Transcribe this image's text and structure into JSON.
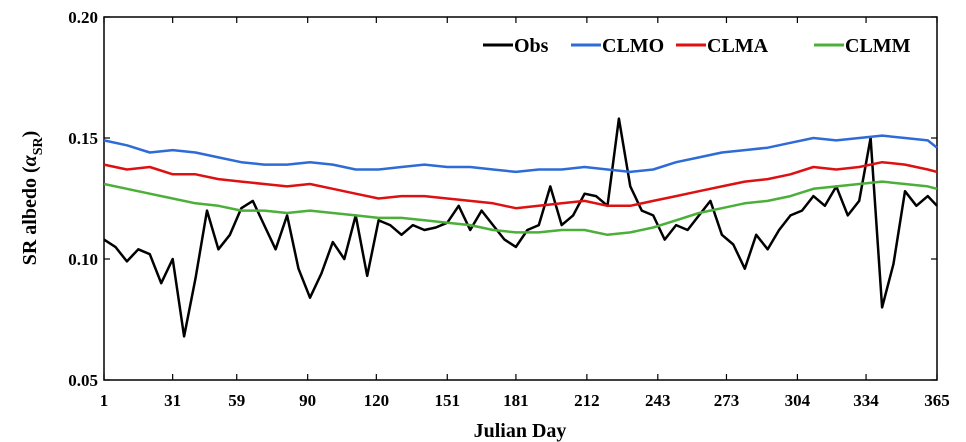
{
  "chart_data": {
    "type": "line",
    "xlabel": "Julian Day",
    "ylabel": "SR albedo (α_SR)",
    "ylabel_main": "SR albedo (",
    "ylabel_symbol": "α",
    "ylabel_sub": "SR",
    "ylabel_close": ")",
    "xlim": [
      1,
      365
    ],
    "ylim": [
      0.05,
      0.2
    ],
    "xticks": [
      1,
      31,
      59,
      90,
      120,
      151,
      181,
      212,
      243,
      273,
      304,
      334,
      365
    ],
    "yticks": [
      0.05,
      0.1,
      0.15,
      0.2
    ],
    "ytick_labels": [
      "0.05",
      "0.10",
      "0.15",
      "0.20"
    ],
    "grid": false,
    "legend_position": "top-right",
    "series": [
      {
        "name": "Obs",
        "color": "#000000",
        "x": [
          1,
          6,
          11,
          16,
          21,
          26,
          31,
          36,
          41,
          46,
          51,
          56,
          61,
          66,
          71,
          76,
          81,
          86,
          91,
          96,
          101,
          106,
          111,
          116,
          121,
          126,
          131,
          136,
          141,
          146,
          151,
          156,
          161,
          166,
          171,
          176,
          181,
          186,
          191,
          196,
          201,
          206,
          211,
          216,
          221,
          226,
          231,
          236,
          241,
          246,
          251,
          256,
          261,
          266,
          271,
          276,
          281,
          286,
          291,
          296,
          301,
          306,
          311,
          316,
          321,
          326,
          331,
          336,
          341,
          346,
          351,
          356,
          361,
          365
        ],
        "values": [
          0.108,
          0.105,
          0.099,
          0.104,
          0.102,
          0.09,
          0.1,
          0.068,
          0.092,
          0.12,
          0.104,
          0.11,
          0.121,
          0.124,
          0.114,
          0.104,
          0.118,
          0.096,
          0.084,
          0.094,
          0.107,
          0.1,
          0.118,
          0.093,
          0.116,
          0.114,
          0.11,
          0.114,
          0.112,
          0.113,
          0.115,
          0.122,
          0.112,
          0.12,
          0.114,
          0.108,
          0.105,
          0.112,
          0.114,
          0.13,
          0.114,
          0.118,
          0.127,
          0.126,
          0.122,
          0.158,
          0.13,
          0.12,
          0.118,
          0.108,
          0.114,
          0.112,
          0.118,
          0.124,
          0.11,
          0.106,
          0.096,
          0.11,
          0.104,
          0.112,
          0.118,
          0.12,
          0.126,
          0.122,
          0.13,
          0.118,
          0.124,
          0.15,
          0.08,
          0.098,
          0.128,
          0.122,
          0.126,
          0.122
        ]
      },
      {
        "name": "CLMO",
        "color": "#2e6bd6",
        "x": [
          1,
          11,
          21,
          31,
          41,
          51,
          61,
          71,
          81,
          91,
          101,
          111,
          121,
          131,
          141,
          151,
          161,
          171,
          181,
          191,
          201,
          211,
          221,
          231,
          241,
          251,
          261,
          271,
          281,
          291,
          301,
          311,
          321,
          331,
          341,
          351,
          361,
          365
        ],
        "values": [
          0.149,
          0.147,
          0.144,
          0.145,
          0.144,
          0.142,
          0.14,
          0.139,
          0.139,
          0.14,
          0.139,
          0.137,
          0.137,
          0.138,
          0.139,
          0.138,
          0.138,
          0.137,
          0.136,
          0.137,
          0.137,
          0.138,
          0.137,
          0.136,
          0.137,
          0.14,
          0.142,
          0.144,
          0.145,
          0.146,
          0.148,
          0.15,
          0.149,
          0.15,
          0.151,
          0.15,
          0.149,
          0.146
        ]
      },
      {
        "name": "CLMA",
        "color": "#dd1111",
        "x": [
          1,
          11,
          21,
          31,
          41,
          51,
          61,
          71,
          81,
          91,
          101,
          111,
          121,
          131,
          141,
          151,
          161,
          171,
          181,
          191,
          201,
          211,
          221,
          231,
          241,
          251,
          261,
          271,
          281,
          291,
          301,
          311,
          321,
          331,
          341,
          351,
          361,
          365
        ],
        "values": [
          0.139,
          0.137,
          0.138,
          0.135,
          0.135,
          0.133,
          0.132,
          0.131,
          0.13,
          0.131,
          0.129,
          0.127,
          0.125,
          0.126,
          0.126,
          0.125,
          0.124,
          0.123,
          0.121,
          0.122,
          0.123,
          0.124,
          0.122,
          0.122,
          0.124,
          0.126,
          0.128,
          0.13,
          0.132,
          0.133,
          0.135,
          0.138,
          0.137,
          0.138,
          0.14,
          0.139,
          0.137,
          0.136
        ]
      },
      {
        "name": "CLMM",
        "color": "#4caf3a",
        "x": [
          1,
          11,
          21,
          31,
          41,
          51,
          61,
          71,
          81,
          91,
          101,
          111,
          121,
          131,
          141,
          151,
          161,
          171,
          181,
          191,
          201,
          211,
          221,
          231,
          241,
          251,
          261,
          271,
          281,
          291,
          301,
          311,
          321,
          331,
          341,
          351,
          361,
          365
        ],
        "values": [
          0.131,
          0.129,
          0.127,
          0.125,
          0.123,
          0.122,
          0.12,
          0.12,
          0.119,
          0.12,
          0.119,
          0.118,
          0.117,
          0.117,
          0.116,
          0.115,
          0.114,
          0.112,
          0.111,
          0.111,
          0.112,
          0.112,
          0.11,
          0.111,
          0.113,
          0.116,
          0.119,
          0.121,
          0.123,
          0.124,
          0.126,
          0.129,
          0.13,
          0.131,
          0.132,
          0.131,
          0.13,
          0.129
        ]
      }
    ]
  }
}
